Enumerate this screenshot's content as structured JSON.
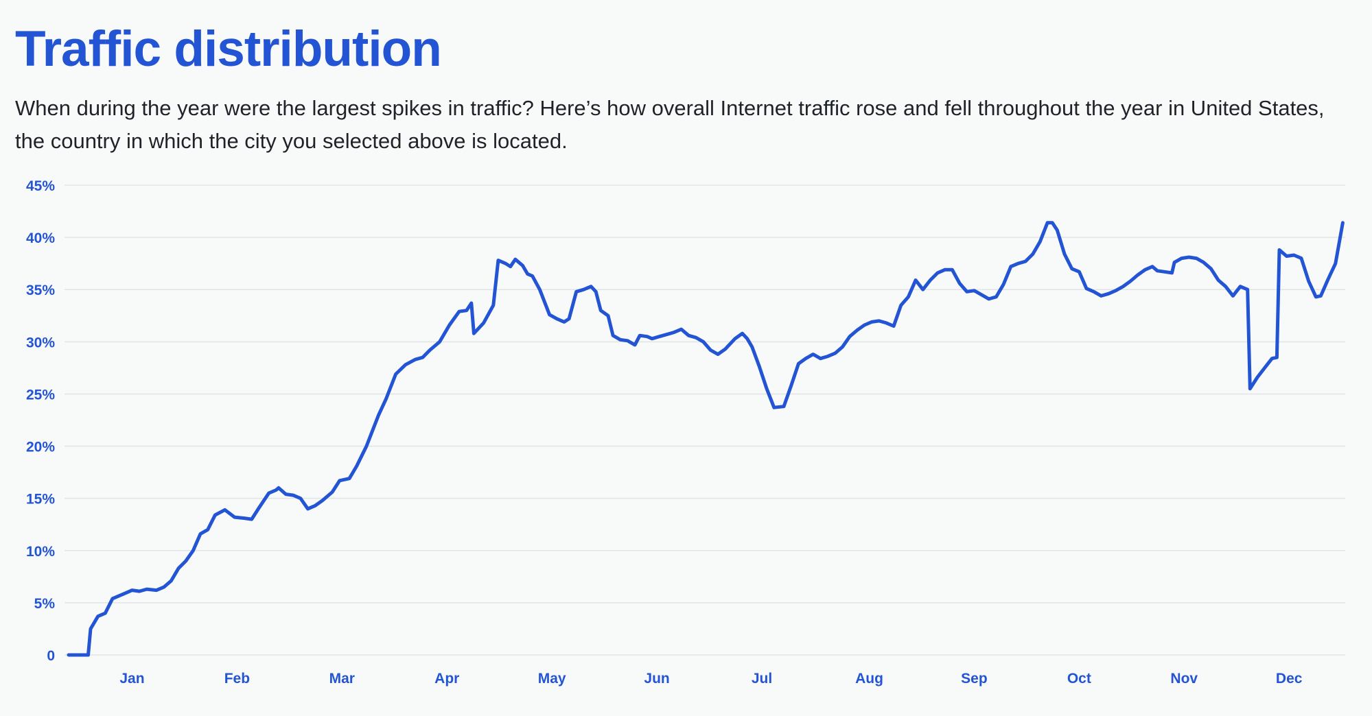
{
  "title": "Traffic distribution",
  "description": "When during the year were the largest spikes in traffic? Here’s how overall Internet traffic rose and fell throughout the year in United States, the country in which the city you selected above is located.",
  "colors": {
    "line": "#2254d3",
    "grid": "#e1e4e6",
    "title": "#2254d3",
    "text": "#1f2329",
    "background": "#f8f9f9"
  },
  "chart_data": {
    "type": "line",
    "x_unit": "weeks",
    "ylim": [
      0,
      45
    ],
    "grid": true,
    "y_ticks": [
      {
        "value": 0,
        "label": "0"
      },
      {
        "value": 5,
        "label": "5%"
      },
      {
        "value": 10,
        "label": "10%"
      },
      {
        "value": 15,
        "label": "15%"
      },
      {
        "value": 20,
        "label": "20%"
      },
      {
        "value": 25,
        "label": "25%"
      },
      {
        "value": 30,
        "label": "30%"
      },
      {
        "value": 35,
        "label": "35%"
      },
      {
        "value": 40,
        "label": "40%"
      },
      {
        "value": 45,
        "label": "45%"
      }
    ],
    "x_ticks": [
      {
        "value": 2.6,
        "label": "Jan"
      },
      {
        "value": 6.9,
        "label": "Feb"
      },
      {
        "value": 11.2,
        "label": "Mar"
      },
      {
        "value": 15.5,
        "label": "Apr"
      },
      {
        "value": 19.8,
        "label": "May"
      },
      {
        "value": 24.1,
        "label": "Jun"
      },
      {
        "value": 28.4,
        "label": "Jul"
      },
      {
        "value": 32.8,
        "label": "Aug"
      },
      {
        "value": 37.1,
        "label": "Sep"
      },
      {
        "value": 41.4,
        "label": "Oct"
      },
      {
        "value": 45.7,
        "label": "Nov"
      },
      {
        "value": 50.0,
        "label": "Dec"
      }
    ],
    "xlim": [
      0,
      52.3
    ],
    "points": [
      [
        0.0,
        0
      ],
      [
        0.8,
        0
      ],
      [
        0.9,
        2.5
      ],
      [
        1.2,
        3.7
      ],
      [
        1.5,
        4.0
      ],
      [
        1.8,
        5.4
      ],
      [
        2.0,
        5.6
      ],
      [
        2.4,
        6.0
      ],
      [
        2.6,
        6.2
      ],
      [
        2.9,
        6.1
      ],
      [
        3.2,
        6.3
      ],
      [
        3.6,
        6.2
      ],
      [
        3.9,
        6.5
      ],
      [
        4.2,
        7.1
      ],
      [
        4.5,
        8.3
      ],
      [
        4.8,
        9.0
      ],
      [
        5.1,
        10.0
      ],
      [
        5.4,
        11.6
      ],
      [
        5.7,
        12.0
      ],
      [
        6.0,
        13.4
      ],
      [
        6.4,
        13.9
      ],
      [
        6.8,
        13.2
      ],
      [
        7.2,
        13.1
      ],
      [
        7.5,
        13.0
      ],
      [
        7.8,
        14.1
      ],
      [
        8.2,
        15.5
      ],
      [
        8.5,
        15.8
      ],
      [
        8.6,
        16.0
      ],
      [
        8.9,
        15.4
      ],
      [
        9.2,
        15.3
      ],
      [
        9.5,
        15.0
      ],
      [
        9.8,
        14.0
      ],
      [
        10.1,
        14.3
      ],
      [
        10.4,
        14.8
      ],
      [
        10.8,
        15.6
      ],
      [
        11.1,
        16.7
      ],
      [
        11.5,
        16.9
      ],
      [
        11.8,
        18.1
      ],
      [
        12.2,
        20.0
      ],
      [
        12.7,
        23.0
      ],
      [
        13.0,
        24.5
      ],
      [
        13.4,
        26.9
      ],
      [
        13.8,
        27.8
      ],
      [
        14.2,
        28.3
      ],
      [
        14.5,
        28.5
      ],
      [
        14.8,
        29.2
      ],
      [
        15.2,
        30.0
      ],
      [
        15.6,
        31.6
      ],
      [
        16.0,
        32.9
      ],
      [
        16.3,
        33.0
      ],
      [
        16.5,
        33.7
      ],
      [
        16.6,
        30.8
      ],
      [
        17.0,
        31.8
      ],
      [
        17.4,
        33.5
      ],
      [
        17.6,
        37.8
      ],
      [
        17.9,
        37.5
      ],
      [
        18.1,
        37.2
      ],
      [
        18.3,
        37.9
      ],
      [
        18.6,
        37.3
      ],
      [
        18.8,
        36.5
      ],
      [
        19.0,
        36.3
      ],
      [
        19.3,
        35.0
      ],
      [
        19.7,
        32.6
      ],
      [
        20.0,
        32.2
      ],
      [
        20.3,
        31.9
      ],
      [
        20.5,
        32.2
      ],
      [
        20.8,
        34.8
      ],
      [
        21.1,
        35.0
      ],
      [
        21.4,
        35.3
      ],
      [
        21.6,
        34.8
      ],
      [
        21.8,
        33.0
      ],
      [
        22.1,
        32.5
      ],
      [
        22.3,
        30.6
      ],
      [
        22.6,
        30.2
      ],
      [
        22.9,
        30.1
      ],
      [
        23.2,
        29.7
      ],
      [
        23.4,
        30.6
      ],
      [
        23.7,
        30.5
      ],
      [
        23.9,
        30.3
      ],
      [
        24.2,
        30.5
      ],
      [
        24.5,
        30.7
      ],
      [
        24.8,
        30.9
      ],
      [
        25.1,
        31.2
      ],
      [
        25.4,
        30.6
      ],
      [
        25.7,
        30.4
      ],
      [
        26.0,
        30.0
      ],
      [
        26.3,
        29.2
      ],
      [
        26.6,
        28.8
      ],
      [
        26.9,
        29.3
      ],
      [
        27.3,
        30.3
      ],
      [
        27.6,
        30.8
      ],
      [
        27.8,
        30.3
      ],
      [
        28.0,
        29.5
      ],
      [
        28.3,
        27.6
      ],
      [
        28.6,
        25.5
      ],
      [
        28.9,
        23.7
      ],
      [
        29.3,
        23.8
      ],
      [
        29.6,
        25.8
      ],
      [
        29.9,
        27.9
      ],
      [
        30.2,
        28.4
      ],
      [
        30.5,
        28.8
      ],
      [
        30.8,
        28.4
      ],
      [
        31.1,
        28.6
      ],
      [
        31.4,
        28.9
      ],
      [
        31.7,
        29.5
      ],
      [
        32.0,
        30.5
      ],
      [
        32.3,
        31.1
      ],
      [
        32.6,
        31.6
      ],
      [
        32.9,
        31.9
      ],
      [
        33.2,
        32.0
      ],
      [
        33.5,
        31.8
      ],
      [
        33.8,
        31.5
      ],
      [
        34.1,
        33.5
      ],
      [
        34.4,
        34.3
      ],
      [
        34.7,
        35.9
      ],
      [
        35.0,
        35.0
      ],
      [
        35.3,
        35.9
      ],
      [
        35.6,
        36.6
      ],
      [
        35.9,
        36.9
      ],
      [
        36.2,
        36.9
      ],
      [
        36.5,
        35.6
      ],
      [
        36.8,
        34.8
      ],
      [
        37.1,
        34.9
      ],
      [
        37.4,
        34.5
      ],
      [
        37.7,
        34.1
      ],
      [
        38.0,
        34.3
      ],
      [
        38.3,
        35.5
      ],
      [
        38.6,
        37.2
      ],
      [
        38.9,
        37.5
      ],
      [
        39.2,
        37.7
      ],
      [
        39.5,
        38.4
      ],
      [
        39.8,
        39.6
      ],
      [
        40.1,
        41.4
      ],
      [
        40.3,
        41.4
      ],
      [
        40.5,
        40.7
      ],
      [
        40.8,
        38.4
      ],
      [
        41.1,
        37.0
      ],
      [
        41.4,
        36.7
      ],
      [
        41.7,
        35.1
      ],
      [
        42.0,
        34.8
      ],
      [
        42.3,
        34.4
      ],
      [
        42.6,
        34.6
      ],
      [
        42.9,
        34.9
      ],
      [
        43.2,
        35.3
      ],
      [
        43.5,
        35.8
      ],
      [
        43.8,
        36.4
      ],
      [
        44.1,
        36.9
      ],
      [
        44.4,
        37.2
      ],
      [
        44.6,
        36.8
      ],
      [
        44.9,
        36.7
      ],
      [
        45.2,
        36.6
      ],
      [
        45.3,
        37.6
      ],
      [
        45.6,
        38.0
      ],
      [
        45.9,
        38.1
      ],
      [
        46.2,
        38.0
      ],
      [
        46.5,
        37.6
      ],
      [
        46.8,
        37.0
      ],
      [
        47.1,
        35.9
      ],
      [
        47.4,
        35.3
      ],
      [
        47.7,
        34.4
      ],
      [
        48.0,
        35.3
      ],
      [
        48.3,
        35.0
      ],
      [
        48.4,
        25.5
      ],
      [
        48.7,
        26.6
      ],
      [
        49.0,
        27.5
      ],
      [
        49.3,
        28.4
      ],
      [
        49.5,
        28.5
      ],
      [
        49.6,
        38.8
      ],
      [
        49.9,
        38.2
      ],
      [
        50.2,
        38.3
      ],
      [
        50.5,
        38.0
      ],
      [
        50.8,
        35.8
      ],
      [
        51.1,
        34.3
      ],
      [
        51.3,
        34.4
      ],
      [
        51.6,
        36.0
      ],
      [
        51.9,
        37.5
      ],
      [
        52.2,
        41.4
      ]
    ]
  }
}
